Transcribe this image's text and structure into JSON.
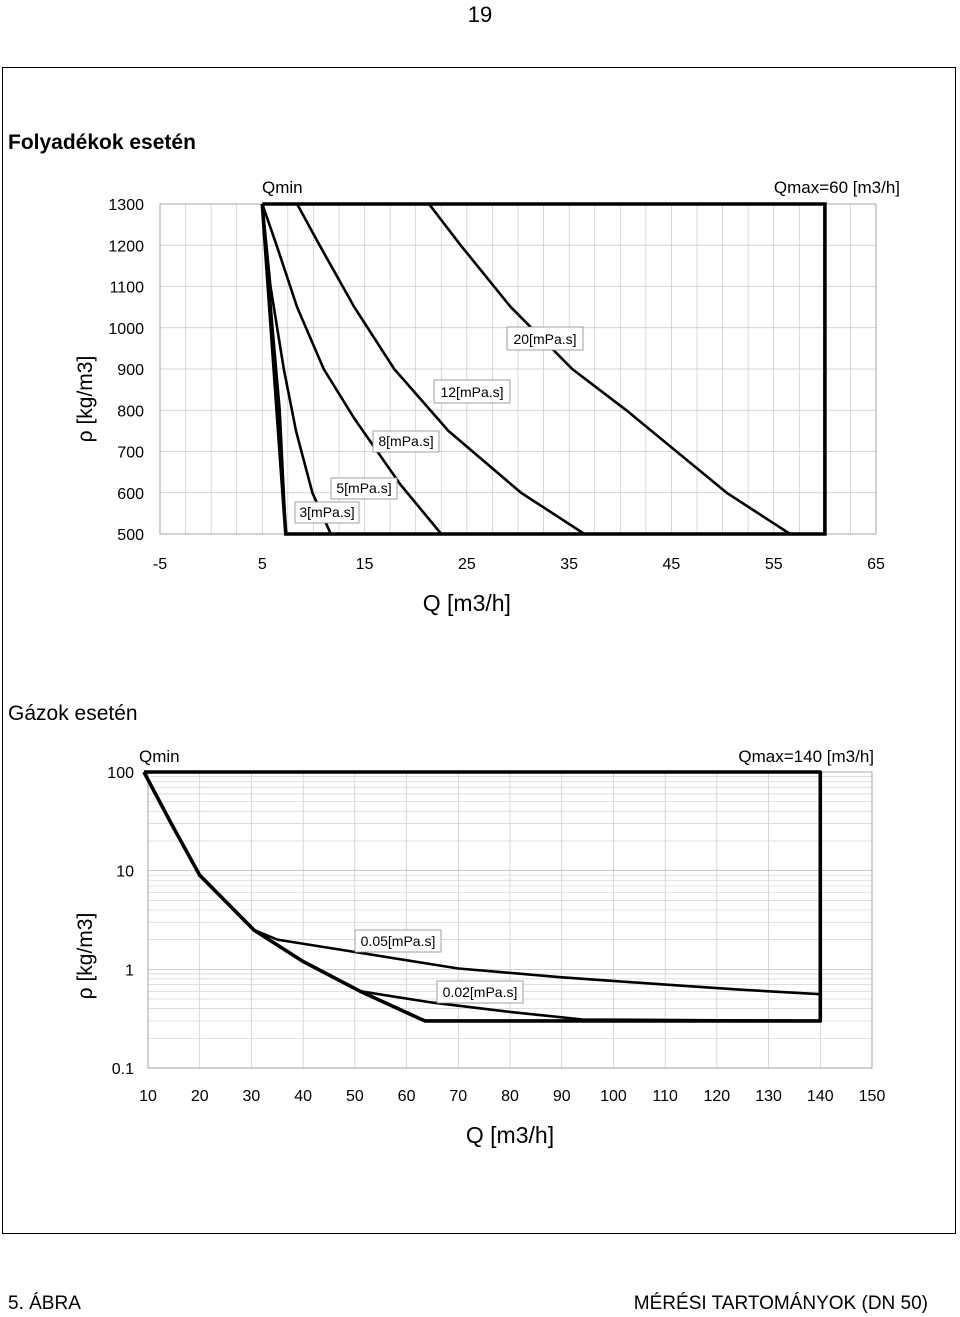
{
  "page": {
    "number": "19",
    "footer_figure": "5. ÁBRA",
    "footer_caption": "MÉRÉSI TARTOMÁNYOK (DN 50)"
  },
  "chart_data": [
    {
      "type": "line",
      "title": "Folyadékok esetén",
      "xlabel": "Q [m3/h]",
      "ylabel": "ρ   [kg/m3]",
      "xlim": [
        -5,
        65
      ],
      "ylim": [
        500,
        1300
      ],
      "x_ticks": [
        "-5",
        "5",
        "15",
        "25",
        "35",
        "45",
        "55",
        "65"
      ],
      "y_ticks": [
        "500",
        "600",
        "700",
        "800",
        "900",
        "1000",
        "1100",
        "1200",
        "1300"
      ],
      "grid": true,
      "annotations": {
        "qmin": "Qmin",
        "qmax": "Qmax=60 [m3/h]"
      },
      "range_boundary": [
        [
          5.0,
          1300
        ],
        [
          60.0,
          1300
        ],
        [
          60.0,
          500
        ],
        [
          7.3,
          500
        ],
        [
          5.0,
          1300
        ]
      ],
      "series": [
        {
          "name": "3[mPa.s]",
          "points": [
            [
              5.0,
              1300
            ],
            [
              6.0,
              1000
            ],
            [
              6.7,
              800
            ],
            [
              7.3,
              500
            ]
          ]
        },
        {
          "name": "5[mPa.s]",
          "points": [
            [
              5.0,
              1300
            ],
            [
              5.8,
              1100
            ],
            [
              7.1,
              900
            ],
            [
              8.3,
              750
            ],
            [
              9.9,
              600
            ],
            [
              11.7,
              500
            ]
          ]
        },
        {
          "name": "8[mPa.s]",
          "points": [
            [
              5.0,
              1300
            ],
            [
              6.4,
              1200
            ],
            [
              8.4,
              1050
            ],
            [
              11.0,
              900
            ],
            [
              14.0,
              780
            ],
            [
              18.5,
              620
            ],
            [
              22.5,
              500
            ]
          ]
        },
        {
          "name": "12[mPa.s]",
          "points": [
            [
              8.4,
              1300
            ],
            [
              10.6,
              1200
            ],
            [
              14.0,
              1050
            ],
            [
              17.9,
              900
            ],
            [
              23.2,
              750
            ],
            [
              30.3,
              600
            ],
            [
              36.5,
              500
            ]
          ]
        },
        {
          "name": "20[mPa.s]",
          "points": [
            [
              21.3,
              1300
            ],
            [
              24.4,
              1200
            ],
            [
              29.3,
              1050
            ],
            [
              35.3,
              900
            ],
            [
              40.6,
              800
            ],
            [
              50.4,
              600
            ],
            [
              56.6,
              500
            ]
          ]
        }
      ]
    },
    {
      "type": "line",
      "title": "Gázok esetén",
      "xlabel": "Q [m3/h]",
      "ylabel": "ρ   [kg/m3]",
      "xlim": [
        10,
        150
      ],
      "ylim": [
        0.1,
        100
      ],
      "yscale": "log",
      "x_ticks": [
        "10",
        "20",
        "30",
        "40",
        "50",
        "60",
        "70",
        "80",
        "90",
        "100",
        "110",
        "120",
        "130",
        "140",
        "150"
      ],
      "y_ticks": [
        "0.1",
        "1",
        "10",
        "100"
      ],
      "grid": true,
      "annotations": {
        "qmin": "Qmin",
        "qmax": "Qmax=140 [m3/h]"
      },
      "range_boundary": [
        [
          9.2,
          100
        ],
        [
          140,
          100
        ],
        [
          140,
          0.3
        ],
        [
          63.5,
          0.3
        ],
        [
          51,
          0.6
        ],
        [
          40,
          1.2
        ],
        [
          30.5,
          2.5
        ],
        [
          20,
          9
        ],
        [
          14.5,
          30
        ],
        [
          9.2,
          100
        ]
      ],
      "series": [
        {
          "name": "0.05[mPa.s]",
          "points": [
            [
              30.5,
              2.5
            ],
            [
              35,
              2.0
            ],
            [
              50,
              1.5
            ],
            [
              70,
              1.02
            ],
            [
              90,
              0.83
            ],
            [
              110,
              0.7
            ],
            [
              125,
              0.62
            ],
            [
              140,
              0.56
            ]
          ]
        },
        {
          "name": "0.02[mPa.s]",
          "points": [
            [
              51,
              0.6
            ],
            [
              65,
              0.46
            ],
            [
              80,
              0.37
            ],
            [
              94,
              0.31
            ],
            [
              140,
              0.3
            ]
          ]
        }
      ]
    }
  ]
}
